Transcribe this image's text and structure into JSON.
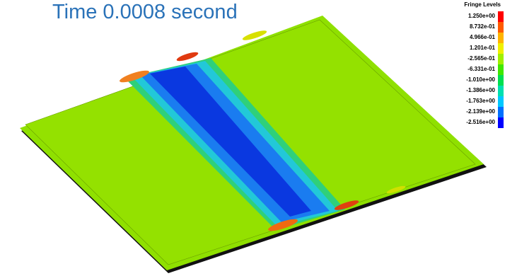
{
  "title": "Time 0.0008 second",
  "legend": {
    "title": "Fringe Levels",
    "levels": [
      "1.250e+00",
      "8.732e-01",
      "4.966e-01",
      "1.201e-01",
      "-2.565e-01",
      "-6.331e-01",
      "-1.010e+00",
      "-1.386e+00",
      "-1.763e+00",
      "-2.139e+00",
      "-2.516e+00"
    ]
  }
}
